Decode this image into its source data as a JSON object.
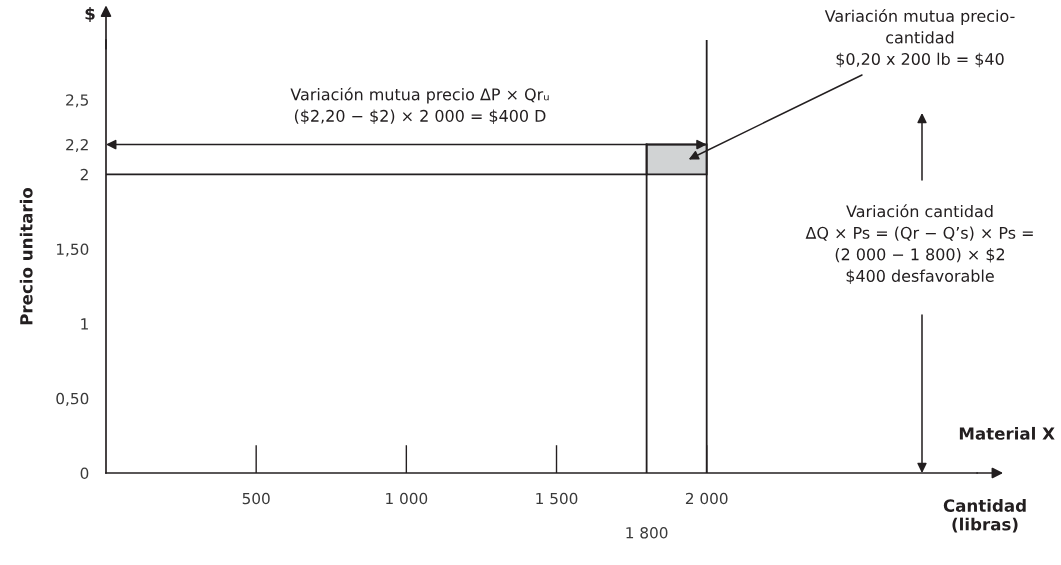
{
  "chart_data": {
    "type": "line",
    "ylabel": "Precio unitario",
    "xlabel": "Cantidad\n(libras)",
    "xlim": [
      0,
      2900
    ],
    "ylim": [
      0,
      2.9
    ],
    "xticks": [
      500,
      {
        "value": 1000,
        "label": "1 000"
      },
      {
        "value": 1500,
        "label": "1 500"
      },
      {
        "value": 2000,
        "label": "2 000"
      }
    ],
    "yticks": [
      0,
      {
        "value": 0.5,
        "label": "0,50"
      },
      1,
      {
        "value": 1.5,
        "label": "1,50"
      },
      2,
      {
        "value": 2.2,
        "label": "2,2"
      },
      {
        "value": 2.5,
        "label": "2,5"
      }
    ],
    "grid": false,
    "legend": false,
    "marker": "none",
    "series": [
      {
        "color": "#231f20",
        "x": [
          0,
          1800
        ],
        "values": [
          2,
          2
        ]
      },
      {
        "color": "#231f20",
        "x": [
          1800,
          1800
        ],
        "values": [
          0,
          2.2
        ]
      },
      {
        "type": "bar",
        "color": "#d1d3d4",
        "x": [
          1900
        ],
        "values": [
          0.2
        ],
        "base": [
          2
        ]
      }
    ],
    "ref_lines": [
      {
        "axis": "x",
        "value": 2000,
        "color": "#231f20"
      }
    ],
    "annotations": [
      "Variación mutua precio ΔP × Qrᵤ\n($2,20 − $2) × 2 000 = $400 D",
      "Variación mutua precio-\ncantidad\n$0,20 x 200 lb = $40",
      "Variación cantidad\nΔQ × Ps = (Qr − Q’s) × Ps =\n(2 000 − 1 800) × $2\n$400 desfavorable",
      "$",
      "Material X",
      "1 800"
    ]
  }
}
